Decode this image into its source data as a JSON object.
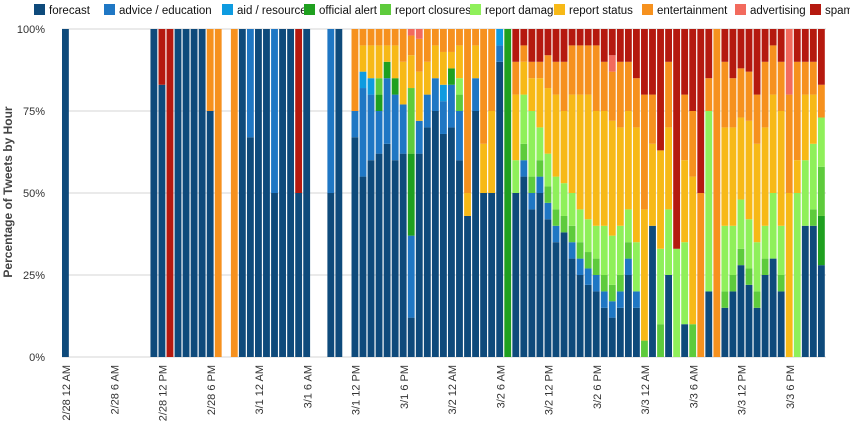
{
  "chart_data": {
    "type": "bar",
    "stacked": true,
    "normalized": true,
    "title": "",
    "xlabel": "",
    "ylabel": "Percentage of Tweets by Hour",
    "ylim": [
      0,
      100
    ],
    "yticks": [
      "0%",
      "25%",
      "50%",
      "75%",
      "100%"
    ],
    "xtick_labels": [
      "2/28 12 AM",
      "2/28 6 AM",
      "2/28 12 PM",
      "2/28 6 PM",
      "3/1 12 AM",
      "3/1 6 AM",
      "3/1 12 PM",
      "3/1 6 PM",
      "3/2 12 AM",
      "3/2 6 AM",
      "3/2 12 PM",
      "3/2 6 PM",
      "3/3 12 AM",
      "3/3 6 AM",
      "3/3 12 PM",
      "3/3 6 PM"
    ],
    "legend_position": "top",
    "series": [
      {
        "name": "forecast",
        "color": "#0e4a7b"
      },
      {
        "name": "advice / education",
        "color": "#1f77c4"
      },
      {
        "name": "aid / resources",
        "color": "#0e9be0"
      },
      {
        "name": "official alert",
        "color": "#1fa01f"
      },
      {
        "name": "report closures",
        "color": "#5ecb3c"
      },
      {
        "name": "report damage",
        "color": "#8ff05a"
      },
      {
        "name": "report status",
        "color": "#f7b917"
      },
      {
        "name": "entertainment",
        "color": "#f6911e"
      },
      {
        "name": "advertising",
        "color": "#f26a5d"
      },
      {
        "name": "spam",
        "color": "#b5190f"
      }
    ],
    "hours": [
      [
        100,
        0,
        0,
        0,
        0,
        0,
        0,
        0,
        0,
        0
      ],
      [
        0,
        0,
        0,
        0,
        0,
        0,
        0,
        0,
        0,
        0
      ],
      [
        0,
        0,
        0,
        0,
        0,
        0,
        0,
        0,
        0,
        0
      ],
      [
        0,
        0,
        0,
        0,
        0,
        0,
        0,
        0,
        0,
        0
      ],
      [
        0,
        0,
        0,
        0,
        0,
        0,
        0,
        0,
        0,
        0
      ],
      [
        0,
        0,
        0,
        0,
        0,
        0,
        0,
        0,
        0,
        0
      ],
      [
        0,
        0,
        0,
        0,
        0,
        0,
        0,
        0,
        0,
        0
      ],
      [
        0,
        0,
        0,
        0,
        0,
        0,
        0,
        0,
        0,
        0
      ],
      [
        0,
        0,
        0,
        0,
        0,
        0,
        0,
        0,
        0,
        0
      ],
      [
        0,
        0,
        0,
        0,
        0,
        0,
        0,
        0,
        0,
        0
      ],
      [
        0,
        0,
        0,
        0,
        0,
        0,
        0,
        0,
        0,
        0
      ],
      [
        100,
        0,
        0,
        0,
        0,
        0,
        0,
        0,
        0,
        0
      ],
      [
        83,
        0,
        0,
        0,
        0,
        0,
        0,
        0,
        0,
        17
      ],
      [
        0,
        0,
        0,
        0,
        0,
        0,
        0,
        0,
        0,
        100
      ],
      [
        100,
        0,
        0,
        0,
        0,
        0,
        0,
        0,
        0,
        0
      ],
      [
        100,
        0,
        0,
        0,
        0,
        0,
        0,
        0,
        0,
        0
      ],
      [
        100,
        0,
        0,
        0,
        0,
        0,
        0,
        0,
        0,
        0
      ],
      [
        100,
        0,
        0,
        0,
        0,
        0,
        0,
        0,
        0,
        0
      ],
      [
        75,
        0,
        0,
        0,
        0,
        0,
        0,
        25,
        0,
        0
      ],
      [
        0,
        0,
        0,
        0,
        0,
        0,
        0,
        100,
        0,
        0
      ],
      [
        0,
        0,
        0,
        0,
        0,
        0,
        0,
        0,
        0,
        0
      ],
      [
        0,
        0,
        0,
        0,
        0,
        0,
        0,
        100,
        0,
        0
      ],
      [
        100,
        0,
        0,
        0,
        0,
        0,
        0,
        0,
        0,
        0
      ],
      [
        67,
        33,
        0,
        0,
        0,
        0,
        0,
        0,
        0,
        0
      ],
      [
        100,
        0,
        0,
        0,
        0,
        0,
        0,
        0,
        0,
        0
      ],
      [
        100,
        0,
        0,
        0,
        0,
        0,
        0,
        0,
        0,
        0
      ],
      [
        50,
        50,
        0,
        0,
        0,
        0,
        0,
        0,
        0,
        0
      ],
      [
        100,
        0,
        0,
        0,
        0,
        0,
        0,
        0,
        0,
        0
      ],
      [
        100,
        0,
        0,
        0,
        0,
        0,
        0,
        0,
        0,
        0
      ],
      [
        50,
        0,
        0,
        0,
        0,
        0,
        0,
        0,
        0,
        50
      ],
      [
        100,
        0,
        0,
        0,
        0,
        0,
        0,
        0,
        0,
        0
      ],
      [
        0,
        0,
        0,
        0,
        0,
        0,
        0,
        0,
        0,
        0
      ],
      [
        0,
        0,
        0,
        0,
        0,
        0,
        0,
        0,
        0,
        0
      ],
      [
        50,
        50,
        0,
        0,
        0,
        0,
        0,
        0,
        0,
        0
      ],
      [
        100,
        0,
        0,
        0,
        0,
        0,
        0,
        0,
        0,
        0
      ],
      [
        0,
        0,
        0,
        0,
        0,
        0,
        0,
        0,
        0,
        0
      ],
      [
        67,
        8,
        0,
        0,
        0,
        0,
        0,
        25,
        0,
        0
      ],
      [
        55,
        27,
        5,
        0,
        0,
        0,
        8,
        5,
        0,
        0
      ],
      [
        60,
        20,
        5,
        0,
        0,
        0,
        10,
        5,
        0,
        0
      ],
      [
        62,
        13,
        0,
        5,
        5,
        0,
        10,
        5,
        0,
        0
      ],
      [
        65,
        20,
        0,
        5,
        0,
        0,
        5,
        5,
        0,
        0
      ],
      [
        60,
        20,
        0,
        5,
        0,
        0,
        10,
        5,
        0,
        0
      ],
      [
        62,
        15,
        0,
        0,
        0,
        0,
        13,
        10,
        0,
        0
      ],
      [
        12,
        25,
        0,
        25,
        20,
        0,
        10,
        6,
        2,
        0
      ],
      [
        62,
        10,
        0,
        0,
        0,
        0,
        15,
        10,
        3,
        0
      ],
      [
        70,
        10,
        0,
        0,
        0,
        0,
        10,
        10,
        0,
        0
      ],
      [
        75,
        10,
        0,
        0,
        0,
        0,
        10,
        5,
        0,
        0
      ],
      [
        68,
        10,
        5,
        0,
        0,
        0,
        10,
        7,
        0,
        0
      ],
      [
        70,
        13,
        0,
        5,
        0,
        0,
        5,
        7,
        0,
        0
      ],
      [
        60,
        15,
        0,
        0,
        5,
        5,
        10,
        5,
        0,
        0
      ],
      [
        43,
        0,
        0,
        0,
        0,
        0,
        7,
        50,
        0,
        0
      ],
      [
        75,
        10,
        0,
        0,
        0,
        0,
        10,
        5,
        0,
        0
      ],
      [
        50,
        0,
        0,
        0,
        0,
        0,
        15,
        35,
        0,
        0
      ],
      [
        50,
        0,
        0,
        0,
        0,
        0,
        25,
        25,
        0,
        0
      ],
      [
        90,
        5,
        5,
        0,
        0,
        0,
        0,
        0,
        0,
        0
      ],
      [
        0,
        0,
        0,
        100,
        0,
        0,
        0,
        0,
        0,
        0
      ],
      [
        50,
        0,
        0,
        0,
        0,
        10,
        20,
        10,
        0,
        10
      ],
      [
        55,
        5,
        0,
        0,
        5,
        15,
        10,
        5,
        0,
        5
      ],
      [
        45,
        5,
        0,
        0,
        5,
        20,
        10,
        5,
        0,
        10
      ],
      [
        50,
        5,
        0,
        0,
        5,
        10,
        15,
        5,
        0,
        10
      ],
      [
        42,
        5,
        0,
        0,
        5,
        10,
        20,
        10,
        0,
        8
      ],
      [
        35,
        5,
        0,
        0,
        5,
        10,
        25,
        10,
        0,
        10
      ],
      [
        38,
        0,
        0,
        0,
        5,
        10,
        22,
        15,
        0,
        10
      ],
      [
        30,
        5,
        0,
        0,
        5,
        10,
        30,
        15,
        0,
        5
      ],
      [
        25,
        5,
        0,
        0,
        5,
        10,
        35,
        15,
        0,
        5
      ],
      [
        22,
        5,
        0,
        0,
        5,
        10,
        38,
        15,
        0,
        5
      ],
      [
        20,
        5,
        0,
        0,
        5,
        10,
        35,
        20,
        0,
        5
      ],
      [
        15,
        5,
        0,
        0,
        5,
        15,
        35,
        15,
        0,
        10
      ],
      [
        12,
        5,
        0,
        0,
        5,
        15,
        35,
        15,
        5,
        8
      ],
      [
        15,
        5,
        0,
        0,
        5,
        15,
        30,
        20,
        0,
        10
      ],
      [
        25,
        5,
        0,
        0,
        5,
        10,
        30,
        15,
        0,
        10
      ],
      [
        15,
        5,
        0,
        0,
        0,
        15,
        35,
        15,
        0,
        15
      ],
      [
        0,
        0,
        0,
        0,
        5,
        0,
        40,
        35,
        0,
        20
      ],
      [
        40,
        0,
        0,
        0,
        0,
        0,
        25,
        15,
        0,
        20
      ],
      [
        0,
        0,
        0,
        0,
        10,
        23,
        30,
        0,
        0,
        37
      ],
      [
        25,
        0,
        0,
        0,
        0,
        20,
        25,
        20,
        0,
        10
      ],
      [
        0,
        0,
        0,
        0,
        0,
        33,
        0,
        0,
        0,
        67
      ],
      [
        10,
        0,
        0,
        0,
        0,
        25,
        25,
        20,
        0,
        20
      ],
      [
        0,
        0,
        0,
        0,
        10,
        0,
        45,
        20,
        0,
        25
      ],
      [
        0,
        0,
        0,
        0,
        0,
        0,
        0,
        50,
        0,
        50
      ],
      [
        20,
        0,
        0,
        0,
        0,
        55,
        0,
        10,
        0,
        15
      ],
      [
        0,
        0,
        0,
        0,
        0,
        0,
        0,
        100,
        0,
        0
      ],
      [
        15,
        0,
        0,
        0,
        5,
        20,
        30,
        20,
        0,
        10
      ],
      [
        20,
        0,
        0,
        0,
        5,
        15,
        30,
        15,
        0,
        15
      ],
      [
        28,
        0,
        0,
        0,
        5,
        15,
        25,
        15,
        0,
        12
      ],
      [
        22,
        0,
        0,
        0,
        5,
        15,
        30,
        15,
        0,
        13
      ],
      [
        15,
        0,
        0,
        0,
        5,
        15,
        30,
        15,
        0,
        20
      ],
      [
        25,
        0,
        0,
        0,
        5,
        10,
        30,
        20,
        0,
        10
      ],
      [
        30,
        0,
        0,
        0,
        0,
        20,
        30,
        15,
        0,
        5
      ],
      [
        20,
        0,
        0,
        0,
        5,
        15,
        35,
        15,
        0,
        10
      ],
      [
        0,
        0,
        0,
        0,
        0,
        0,
        50,
        30,
        20,
        0
      ],
      [
        0,
        0,
        0,
        0,
        0,
        50,
        10,
        30,
        0,
        10
      ],
      [
        40,
        0,
        0,
        0,
        0,
        20,
        20,
        10,
        0,
        10
      ],
      [
        40,
        0,
        0,
        0,
        5,
        20,
        15,
        10,
        0,
        10
      ],
      [
        28,
        0,
        0,
        15,
        15,
        15,
        0,
        10,
        0,
        17
      ]
    ]
  }
}
